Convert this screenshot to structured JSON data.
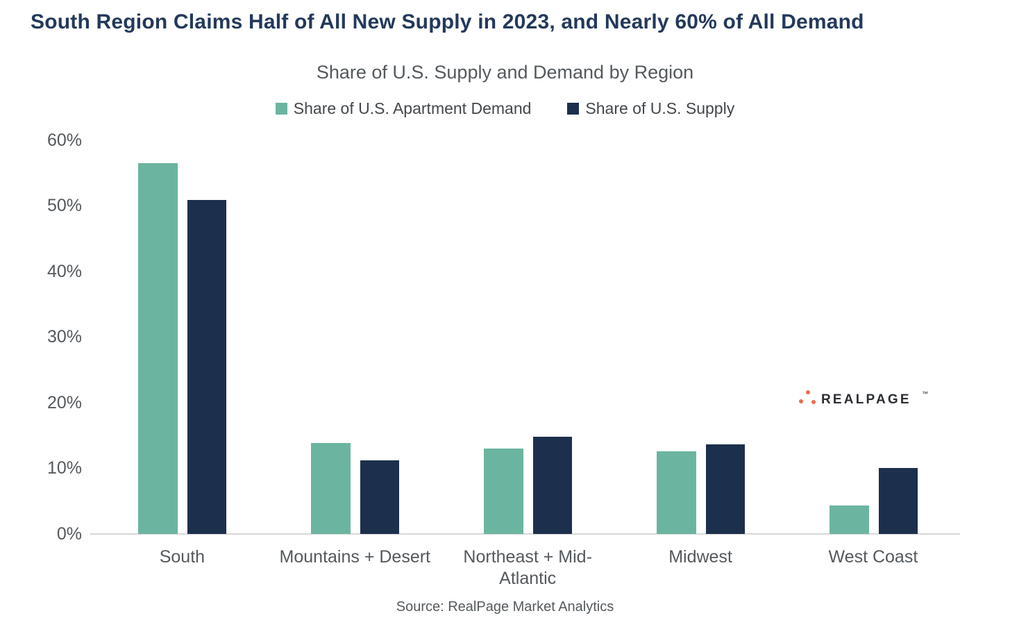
{
  "title": "South Region Claims Half of All New Supply in 2023, and Nearly 60% of All Demand",
  "subtitle": "Share of U.S. Supply and Demand by Region",
  "legend": [
    {
      "label": "Share of U.S. Apartment Demand",
      "color": "#6BB5A0"
    },
    {
      "label": "Share of U.S. Supply",
      "color": "#1C2F4C"
    }
  ],
  "source": "Source: RealPage Market Analytics",
  "logo": {
    "text": "REALPAGE",
    "trademark": "™",
    "dot_color": "#ED6C4A",
    "text_color": "#2B2E33"
  },
  "colors": {
    "title": "#23395B",
    "demand": "#6BB5A0",
    "supply": "#1C2F4C",
    "axis_line": "#D8D8D8",
    "label_gray": "#54595D"
  },
  "chart_data": {
    "type": "bar",
    "title": "Share of U.S. Supply and Demand by Region",
    "categories": [
      "South",
      "Mountains + Desert",
      "Northeast + Mid-Atlantic",
      "Midwest",
      "West Coast"
    ],
    "series": [
      {
        "name": "Share of U.S. Apartment Demand",
        "color": "#6BB5A0",
        "values": [
          56.5,
          13.8,
          13.0,
          12.6,
          4.3
        ]
      },
      {
        "name": "Share of U.S. Supply",
        "color": "#1C2F4C",
        "values": [
          50.9,
          11.2,
          14.8,
          13.6,
          10.0
        ]
      }
    ],
    "ylim": [
      0,
      60
    ],
    "yticks": [
      "0%",
      "10%",
      "20%",
      "30%",
      "40%",
      "50%",
      "60%"
    ],
    "ylabel": "",
    "xlabel": "",
    "grid": false,
    "legend_position": "top"
  }
}
